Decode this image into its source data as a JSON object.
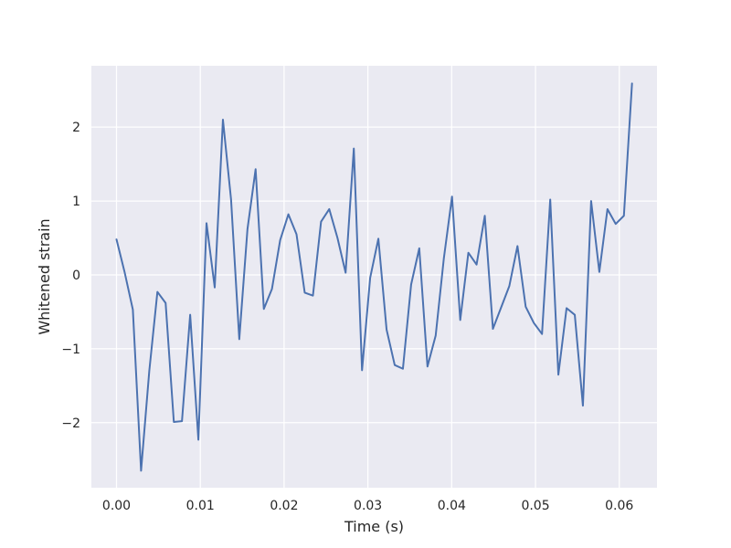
{
  "chart_data": {
    "type": "line",
    "title": "",
    "xlabel": "Time (s)",
    "ylabel": "Whitened strain",
    "xlim": [
      -0.003,
      0.0645
    ],
    "ylim": [
      -2.88,
      2.83
    ],
    "grid": true,
    "x_ticks": [
      0.0,
      0.01,
      0.02,
      0.03,
      0.04,
      0.05,
      0.06
    ],
    "x_tick_labels": [
      "0.00",
      "0.01",
      "0.02",
      "0.03",
      "0.04",
      "0.05",
      "0.06"
    ],
    "y_ticks": [
      -2,
      -1,
      0,
      1,
      2
    ],
    "y_tick_labels": [
      "−2",
      "−1",
      "0",
      "1",
      "2"
    ],
    "colors": {
      "line": "#4c72b0",
      "plot_bg": "#eaeaf2",
      "grid": "#ffffff",
      "text": "#262626"
    },
    "series": [
      {
        "x": [
          0.0,
          0.00098,
          0.00195,
          0.00293,
          0.00391,
          0.00488,
          0.00586,
          0.00684,
          0.00781,
          0.00879,
          0.00977,
          0.01074,
          0.01172,
          0.0127,
          0.01367,
          0.01465,
          0.01563,
          0.0166,
          0.01758,
          0.01855,
          0.01953,
          0.02051,
          0.02148,
          0.02246,
          0.02344,
          0.02441,
          0.02539,
          0.02637,
          0.02734,
          0.02832,
          0.0293,
          0.03027,
          0.03125,
          0.03223,
          0.0332,
          0.03418,
          0.03516,
          0.03613,
          0.03711,
          0.03809,
          0.03906,
          0.04004,
          0.04102,
          0.04199,
          0.04297,
          0.04395,
          0.04492,
          0.0459,
          0.04688,
          0.04785,
          0.04883,
          0.0498,
          0.05078,
          0.05176,
          0.05273,
          0.05371,
          0.05469,
          0.05566,
          0.05664,
          0.05762,
          0.05859,
          0.05957,
          0.06055,
          0.06152
        ],
        "values": [
          0.48,
          0.03,
          -0.47,
          -2.65,
          -1.3,
          -0.23,
          -0.38,
          -1.99,
          -1.98,
          -0.54,
          -2.23,
          0.7,
          -0.17,
          2.1,
          1.02,
          -0.87,
          0.62,
          1.43,
          -0.46,
          -0.19,
          0.47,
          0.82,
          0.55,
          -0.24,
          -0.28,
          0.72,
          0.89,
          0.5,
          0.03,
          1.71,
          -1.29,
          -0.04,
          0.49,
          -0.74,
          -1.22,
          -1.27,
          -0.13,
          0.36,
          -1.24,
          -0.82,
          0.22,
          1.06,
          -0.61,
          0.3,
          0.14,
          0.8,
          -0.73,
          -0.44,
          -0.15,
          0.39,
          -0.43,
          -0.65,
          -0.8,
          1.02,
          -1.35,
          -0.45,
          -0.54,
          -1.77,
          1.0,
          0.04,
          0.89,
          0.69,
          0.8,
          2.59
        ]
      }
    ]
  }
}
